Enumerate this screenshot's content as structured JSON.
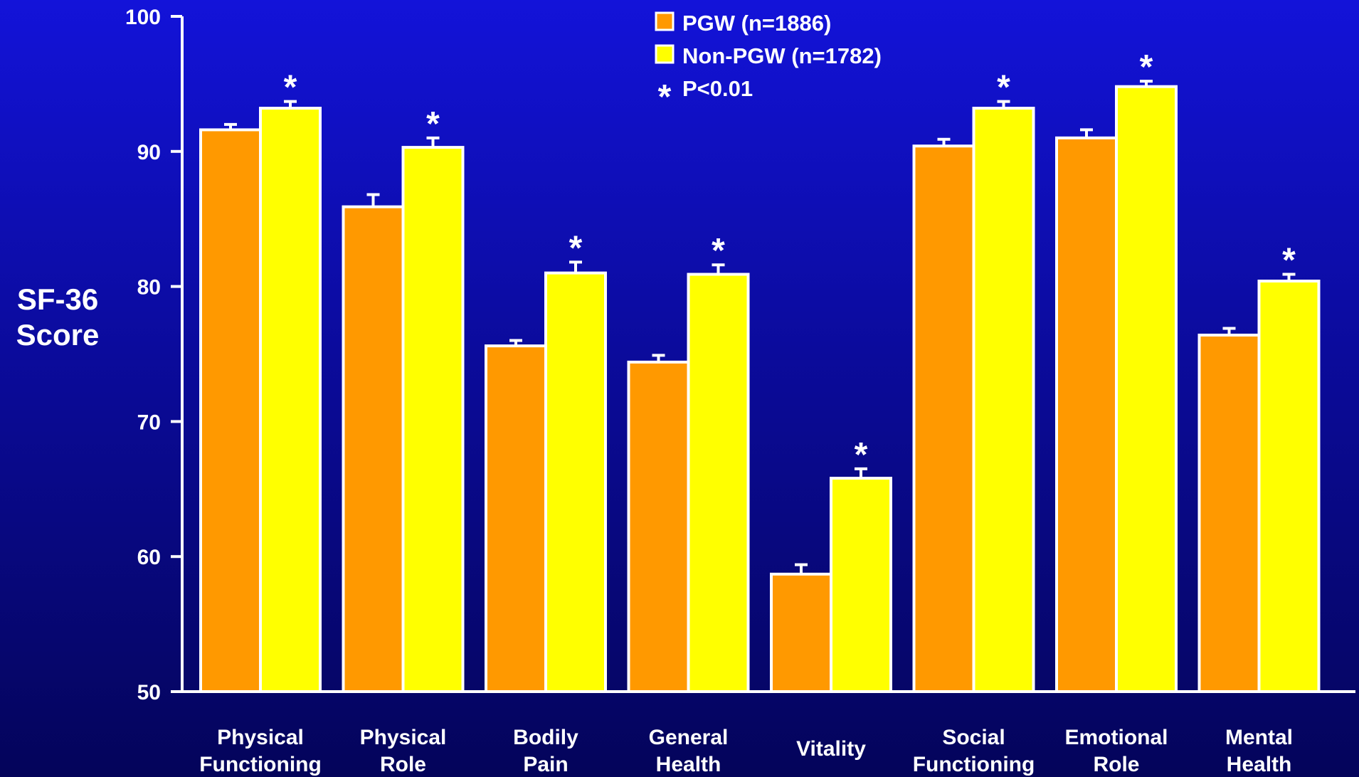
{
  "chart_data": {
    "type": "bar",
    "ylabel_lines": [
      "SF-36",
      "Score"
    ],
    "ylim": [
      50,
      100
    ],
    "yticks": [
      50,
      60,
      70,
      80,
      90,
      100
    ],
    "categories": [
      [
        "Physical",
        "Functioning"
      ],
      [
        "Physical",
        "Role"
      ],
      [
        "Bodily",
        "Pain"
      ],
      [
        "General",
        "Health"
      ],
      [
        "Vitality"
      ],
      [
        "Social",
        "Functioning"
      ],
      [
        "Emotional",
        "Role"
      ],
      [
        "Mental",
        "Health"
      ]
    ],
    "series": [
      {
        "name": "PGW (n=1886)",
        "color": "#ff9900",
        "values": [
          91.6,
          85.9,
          75.6,
          74.4,
          58.7,
          90.4,
          91.0,
          76.4
        ],
        "error": [
          0.4,
          0.9,
          0.4,
          0.5,
          0.7,
          0.5,
          0.6,
          0.5
        ]
      },
      {
        "name": "Non-PGW (n=1782)",
        "color": "#ffff00",
        "values": [
          93.2,
          90.3,
          81.0,
          80.9,
          65.8,
          93.2,
          94.8,
          80.4
        ],
        "error": [
          0.5,
          0.7,
          0.8,
          0.7,
          0.7,
          0.5,
          0.4,
          0.5
        ]
      }
    ],
    "significance_marker": "*",
    "significance_label": "P<0.01",
    "significant": [
      true,
      true,
      true,
      true,
      true,
      true,
      true,
      true
    ],
    "legend_position": "top-center",
    "grid": false
  }
}
